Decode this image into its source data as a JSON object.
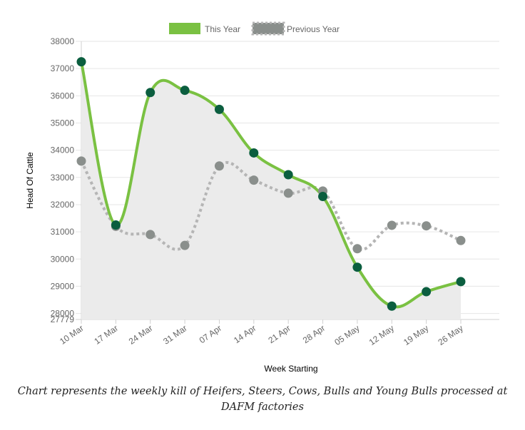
{
  "caption": "Chart represents the weekly kill of Heifers, Steers, Cows, Bulls and Young Bulls processed at DAFM factories",
  "chart_data": {
    "type": "line",
    "title": "",
    "xlabel": "Week Starting",
    "ylabel": "Head Of Cattle",
    "categories": [
      "10 Mar",
      "17 Mar",
      "24 Mar",
      "31 Mar",
      "07 Apr",
      "14 Apr",
      "21 Apr",
      "28 Apr",
      "05 May",
      "12 May",
      "19 May",
      "26 May"
    ],
    "ylim": [
      27779,
      38000
    ],
    "yticks": [
      27779,
      28000,
      29000,
      30000,
      31000,
      32000,
      33000,
      34000,
      35000,
      36000,
      37000,
      38000
    ],
    "grid": true,
    "legend_position": "top-center",
    "series": [
      {
        "name": "This Year",
        "style": "solid",
        "line_color": "#7ac142",
        "point_color": "#0b5e3f",
        "fill_color": "#ebebeb",
        "values": [
          37250,
          31250,
          36120,
          36200,
          35500,
          33900,
          33100,
          32300,
          29700,
          28270,
          28800,
          29170
        ]
      },
      {
        "name": "Previous Year",
        "style": "dotted",
        "line_color": "#b5b5b5",
        "point_color": "#8a8f8c",
        "values": [
          33600,
          31200,
          30900,
          30500,
          33420,
          32900,
          32420,
          32500,
          30380,
          31240,
          31220,
          30680
        ]
      }
    ]
  }
}
